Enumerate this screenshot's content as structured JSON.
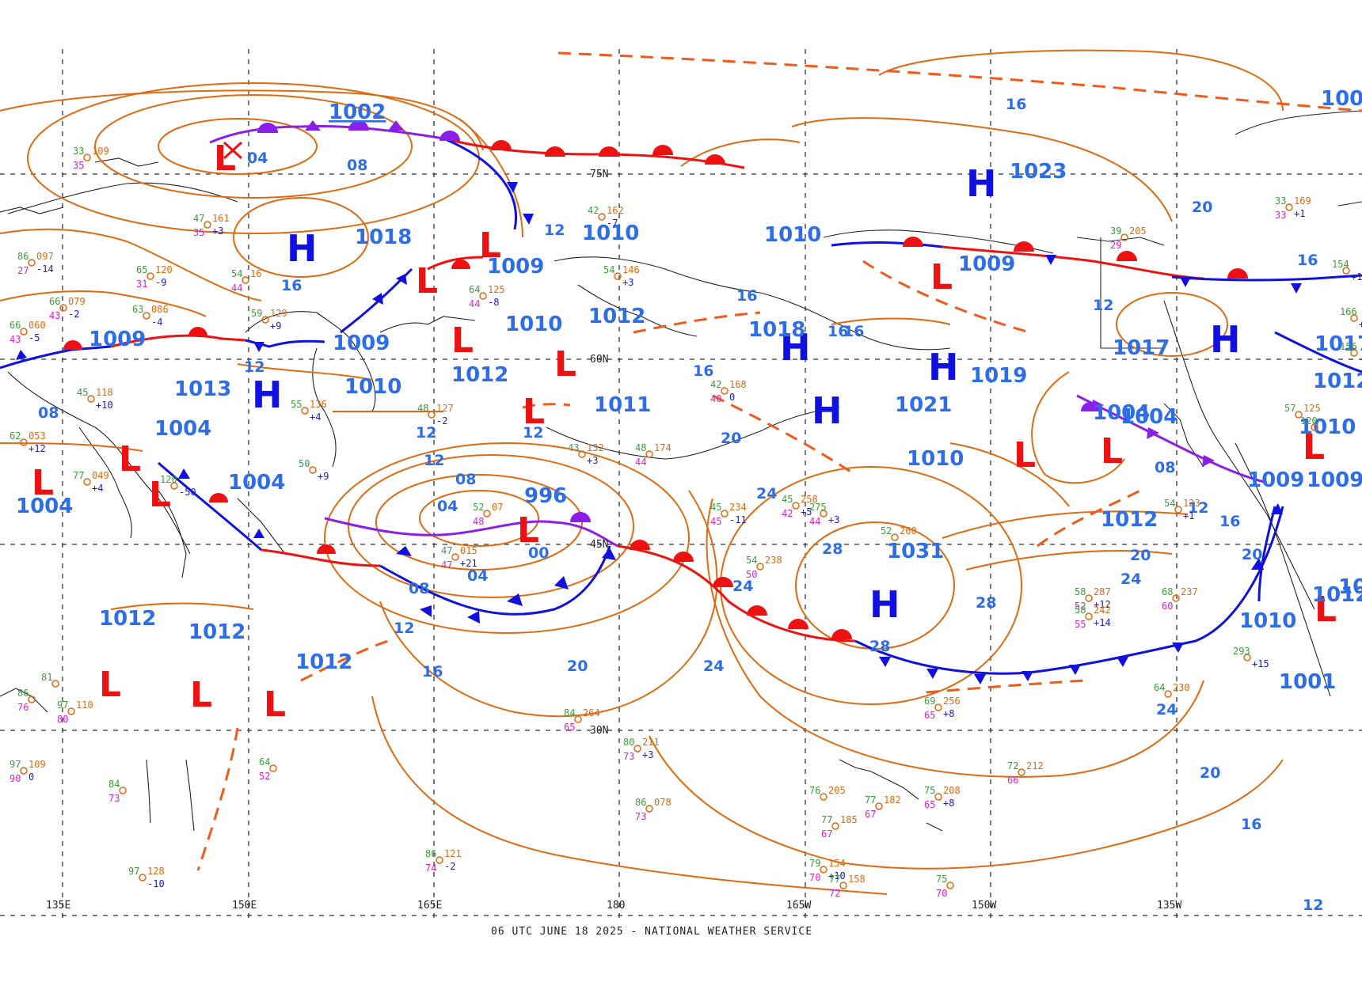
{
  "footer": "06 UTC JUNE 18 2025 - NATIONAL WEATHER SERVICE",
  "longitude_labels": [
    "135E",
    "150E",
    "165E",
    "180",
    "165W",
    "150W",
    "135W"
  ],
  "latitude_labels": [
    "75N",
    "60N",
    "45N",
    "30N"
  ],
  "highs": [
    {
      "letter": "H",
      "value": "1023"
    },
    {
      "letter": "H",
      "value": "1018"
    },
    {
      "letter": "H",
      "value": "1013"
    },
    {
      "letter": "H",
      "value": "1018"
    },
    {
      "letter": "H",
      "value": "1021"
    },
    {
      "letter": "H",
      "value": "1019"
    },
    {
      "letter": "H",
      "value": "1017"
    },
    {
      "letter": "H",
      "value": "1031"
    }
  ],
  "lows": [
    {
      "letter": "L",
      "value": "1002"
    },
    {
      "letter": "L",
      "value": "1009"
    },
    {
      "letter": "L",
      "value": "1009"
    },
    {
      "letter": "L",
      "value": "1010"
    },
    {
      "letter": "L",
      "value": "1012"
    },
    {
      "letter": "L",
      "value": "1011"
    },
    {
      "letter": "L",
      "value": "996"
    },
    {
      "letter": "L",
      "value": "1004"
    },
    {
      "letter": "L",
      "value": "1004"
    },
    {
      "letter": "L",
      "value": "1012"
    },
    {
      "letter": "L",
      "value": "1012"
    },
    {
      "letter": "L",
      "value": "1012"
    },
    {
      "letter": "L",
      "value": "1009"
    },
    {
      "letter": "L",
      "value": "1010"
    },
    {
      "letter": "L",
      "value": "1004"
    },
    {
      "letter": "L",
      "value": "1009"
    },
    {
      "letter": "L",
      "value": "1010"
    },
    {
      "letter": "L",
      "value": "1001"
    }
  ],
  "other_values": [
    "1010",
    "1009",
    "1010",
    "1012",
    "1010",
    "1012",
    "1004",
    "1004",
    "1017",
    "1010",
    "1009",
    "100",
    "1012",
    "1012",
    "100"
  ],
  "isobar_labels": [
    "04",
    "08",
    "16",
    "12",
    "12",
    "12",
    "16",
    "16",
    "20",
    "16",
    "12",
    "08",
    "08",
    "04",
    "00",
    "04",
    "08",
    "12",
    "16",
    "20",
    "24",
    "24",
    "24",
    "28",
    "28",
    "28",
    "20",
    "24",
    "20",
    "20",
    "16",
    "12",
    "16",
    "08",
    "24",
    "20",
    "16",
    "12",
    "16",
    "16",
    "20",
    "12",
    "08",
    "12"
  ],
  "station_obs": [
    {
      "t": "33",
      "p": "109",
      "d": "35"
    },
    {
      "t": "47",
      "p": "161",
      "c": "+3",
      "d": "35"
    },
    {
      "t": "86",
      "p": "097",
      "c": "-14",
      "d": "27"
    },
    {
      "t": "65",
      "p": "120",
      "c": "-9",
      "d": "31"
    },
    {
      "t": "66",
      "p": "079",
      "c": "-2",
      "d": "43"
    },
    {
      "t": "63",
      "p": "086",
      "c": "-4"
    },
    {
      "t": "66",
      "p": "060",
      "c": "-5",
      "d": "43"
    },
    {
      "t": "54",
      "p": "16",
      "d": "44"
    },
    {
      "t": "59",
      "p": "129",
      "c": "+9"
    },
    {
      "t": "45",
      "p": "118",
      "c": "+10"
    },
    {
      "t": "62",
      "p": "053",
      "c": "+12"
    },
    {
      "t": "77",
      "p": "049",
      "c": "+4"
    },
    {
      "t": "55",
      "p": "136",
      "c": "+4"
    },
    {
      "t": "50",
      "c": "+9"
    },
    {
      "t": "64",
      "p": "125",
      "c": "-8",
      "d": "44"
    },
    {
      "t": "48",
      "p": "127",
      "c": "-2"
    },
    {
      "t": "52",
      "p": "07",
      "d": "48"
    },
    {
      "t": "47",
      "p": "015",
      "c": "+21",
      "d": "47"
    },
    {
      "t": "54",
      "p": "146",
      "c": "+3"
    },
    {
      "t": "42",
      "p": "162",
      "c": "-7"
    },
    {
      "t": "43",
      "p": "132",
      "c": "+3"
    },
    {
      "t": "48",
      "p": "174",
      "d": "44"
    },
    {
      "t": "42",
      "p": "168",
      "c": "0",
      "d": "40"
    },
    {
      "t": "45",
      "p": "234",
      "c": "-11",
      "d": "45"
    },
    {
      "t": "45",
      "p": "258",
      "c": "+5",
      "d": "42"
    },
    {
      "t": "275",
      "c": "+3",
      "d": "44"
    },
    {
      "t": "54",
      "p": "238",
      "d": "50"
    },
    {
      "t": "52",
      "p": "260"
    },
    {
      "t": "58",
      "p": "287",
      "c": "+12",
      "d": "52"
    },
    {
      "t": "58",
      "p": "242",
      "c": "+14",
      "d": "55"
    },
    {
      "t": "68",
      "p": "237",
      "d": "60"
    },
    {
      "t": "69",
      "p": "256",
      "c": "+8",
      "d": "65"
    },
    {
      "t": "64",
      "p": "230"
    },
    {
      "t": "84",
      "p": "264",
      "d": "65"
    },
    {
      "t": "80",
      "p": "211",
      "c": "+3",
      "d": "73"
    },
    {
      "t": "86",
      "p": "078",
      "d": "73"
    },
    {
      "t": "76",
      "p": "205"
    },
    {
      "t": "77",
      "p": "182",
      "d": "67"
    },
    {
      "t": "75",
      "p": "208",
      "c": "+8",
      "d": "65"
    },
    {
      "t": "77",
      "p": "185",
      "d": "67"
    },
    {
      "t": "79",
      "p": "154",
      "c": "+10",
      "d": "70"
    },
    {
      "t": "77",
      "p": "158",
      "d": "72"
    },
    {
      "t": "75",
      "d": "70"
    },
    {
      "t": "86",
      "p": "121",
      "c": "-2",
      "d": "74"
    },
    {
      "t": "97",
      "p": "128",
      "c": "-10"
    },
    {
      "t": "97",
      "p": "109",
      "c": "0",
      "d": "90"
    },
    {
      "t": "84",
      "d": "73"
    },
    {
      "t": "64",
      "d": "52"
    },
    {
      "t": "72",
      "p": "212",
      "d": "66"
    },
    {
      "t": "293",
      "c": "+15"
    },
    {
      "t": "54",
      "p": "123",
      "c": "+1"
    },
    {
      "t": "33",
      "p": "169",
      "c": "+1",
      "d": "33"
    },
    {
      "t": "39",
      "p": "205",
      "d": "29"
    },
    {
      "t": "154",
      "c": "+11"
    },
    {
      "t": "166",
      "c": "+2"
    },
    {
      "t": "156",
      "c": "-4"
    },
    {
      "t": "57",
      "p": "125"
    },
    {
      "t": "120"
    },
    {
      "t": "97",
      "p": "110",
      "d": "80"
    },
    {
      "t": "86",
      "d": "76"
    },
    {
      "t": "81"
    },
    {
      "t": "120",
      "c": "-50"
    }
  ]
}
